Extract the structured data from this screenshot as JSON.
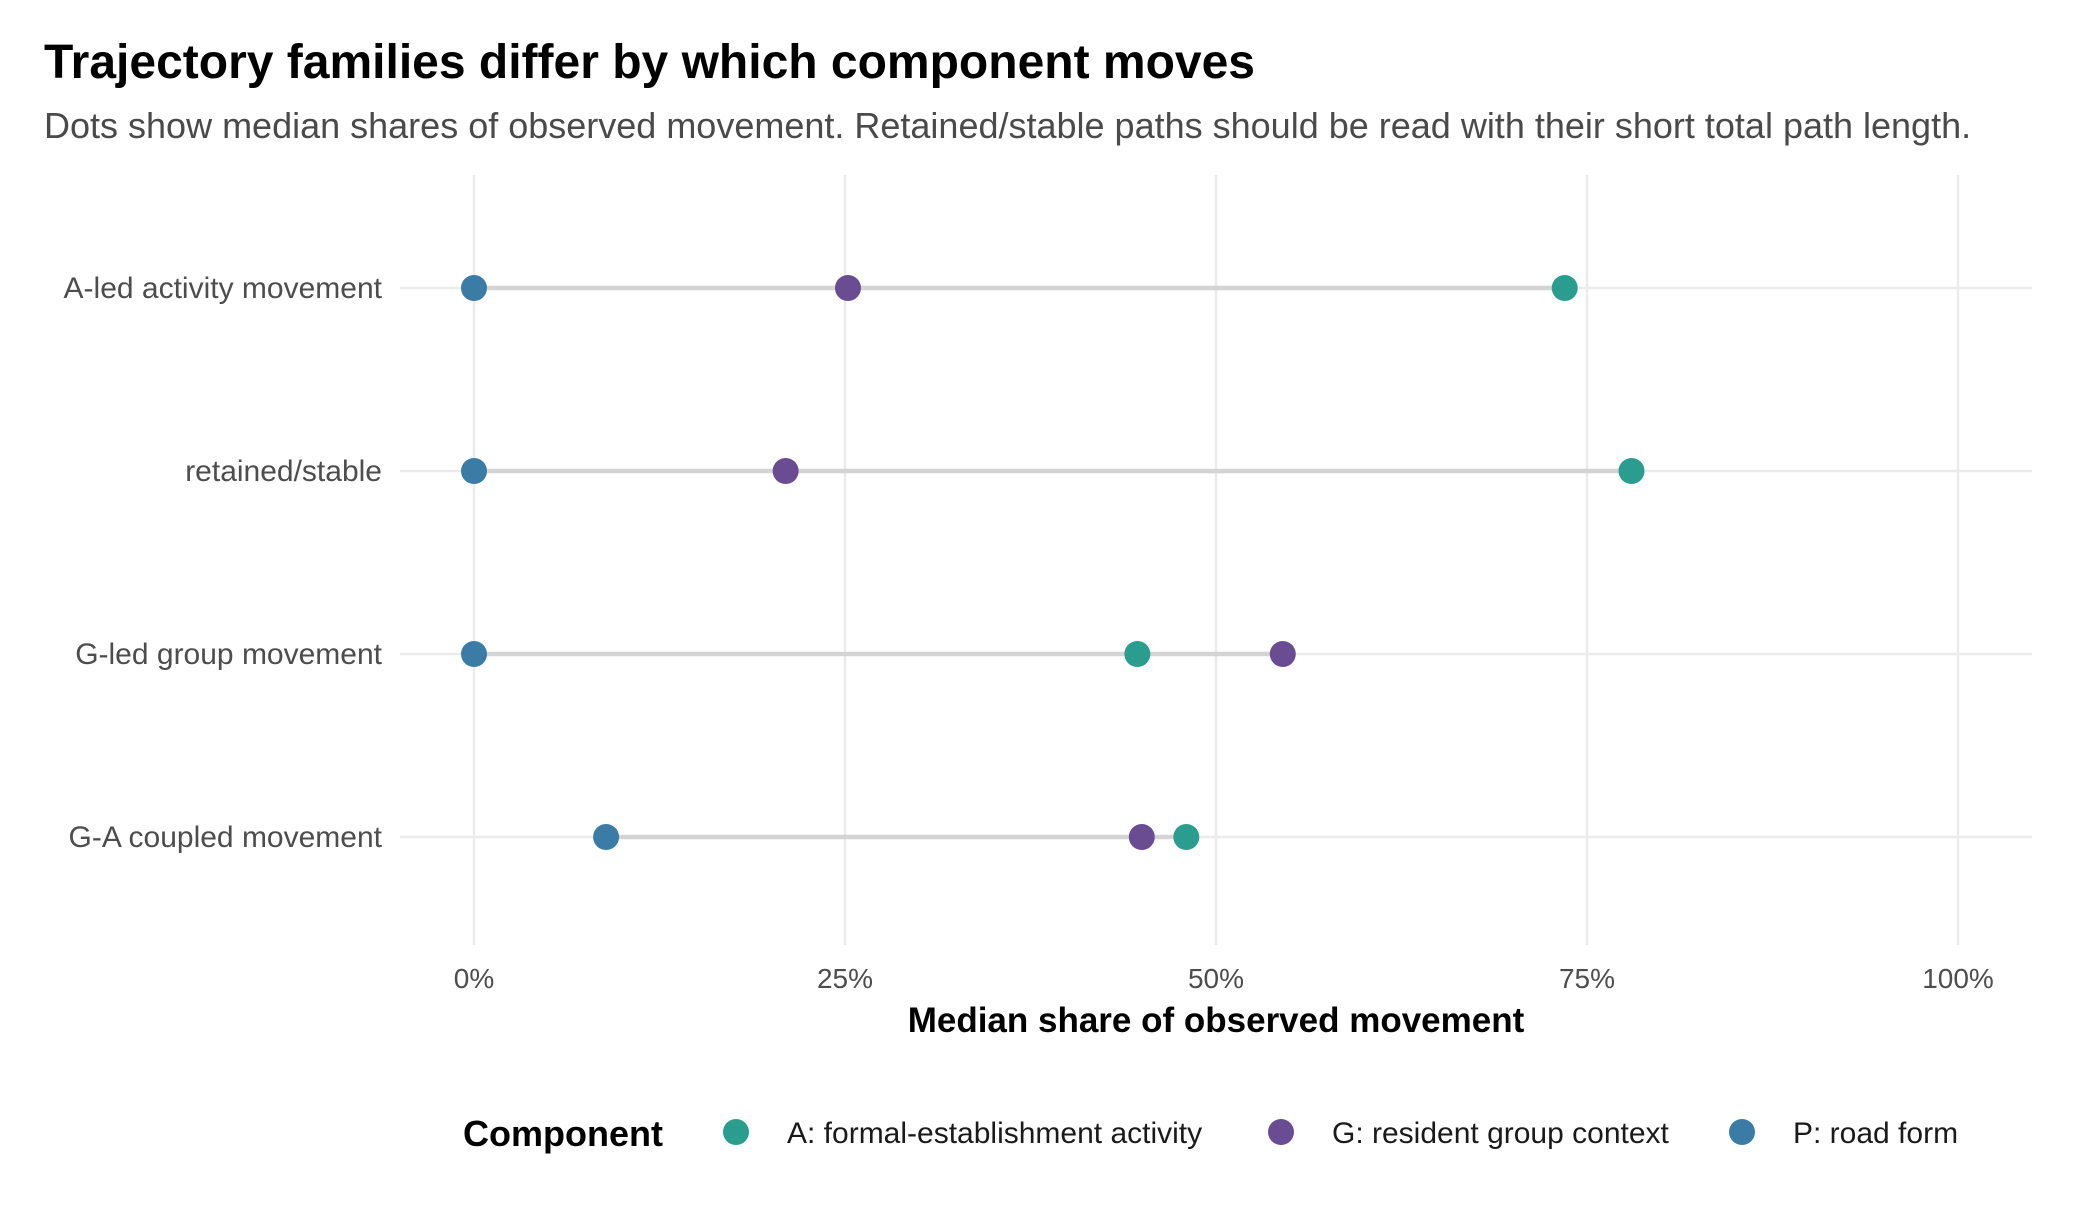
{
  "chart_data": {
    "type": "dot-range",
    "title": "Trajectory families differ by which component moves",
    "subtitle": "Dots show median shares of observed movement. Retained/stable paths should be read with their short total path length.",
    "xlabel": "Median share of observed movement",
    "xlim": [
      -0.05,
      1.05
    ],
    "x_ticks": [
      0,
      0.25,
      0.5,
      0.75,
      1.0
    ],
    "x_tick_labels": [
      "0%",
      "25%",
      "50%",
      "75%",
      "100%"
    ],
    "categories": [
      "A-led activity movement",
      "retained/stable",
      "G-led group movement",
      "G-A coupled movement"
    ],
    "series": [
      {
        "name": "A: formal-establishment activity",
        "color": "#2a9d8f",
        "values": [
          0.735,
          0.78,
          0.447,
          0.48
        ]
      },
      {
        "name": "G: resident group context",
        "color": "#6a4c93",
        "values": [
          0.252,
          0.21,
          0.545,
          0.45
        ]
      },
      {
        "name": "P: road form",
        "color": "#3a7ca5",
        "values": [
          0.0,
          0.0,
          0.0,
          0.089
        ]
      }
    ],
    "grid": true,
    "legend": {
      "title": "Component",
      "position": "bottom"
    }
  }
}
